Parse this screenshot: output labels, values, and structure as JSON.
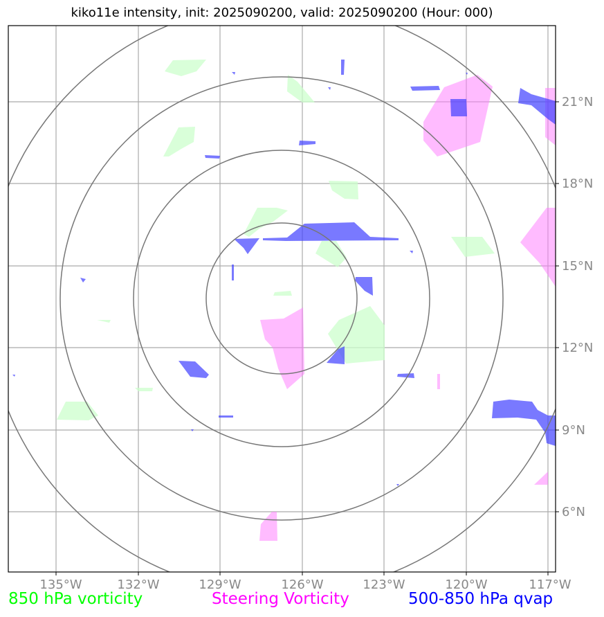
{
  "title": "kiko11e intensity, init: 2025090200, valid: 2025090200 (Hour: 000)",
  "lon_labels": [
    "135°W",
    "132°W",
    "129°W",
    "126°W",
    "123°W",
    "120°W",
    "117°W"
  ],
  "lat_labels": [
    "21°N",
    "18°N",
    "15°N",
    "12°N",
    "9°N",
    "6°N"
  ],
  "legend": {
    "vorticity_850": "850 hPa vorticity",
    "steering_vorticity": "Steering Vorticity",
    "qvap_500_850": "500-850 hPa qvap"
  },
  "colors": {
    "vorticity_850": "#00ff00",
    "steering_vorticity": "#ff00ff",
    "qvap_500_850": "#0000ff",
    "grid": "#aaaaaa",
    "range_rings": "#777777"
  },
  "map_extent": {
    "lon_min": -136.7,
    "lon_max": -116.7,
    "lat_min": 3.8,
    "lat_max": 23.8
  },
  "storm_center": {
    "lon": -126.6,
    "lat": 13.8
  },
  "range_ring_count": 4
}
